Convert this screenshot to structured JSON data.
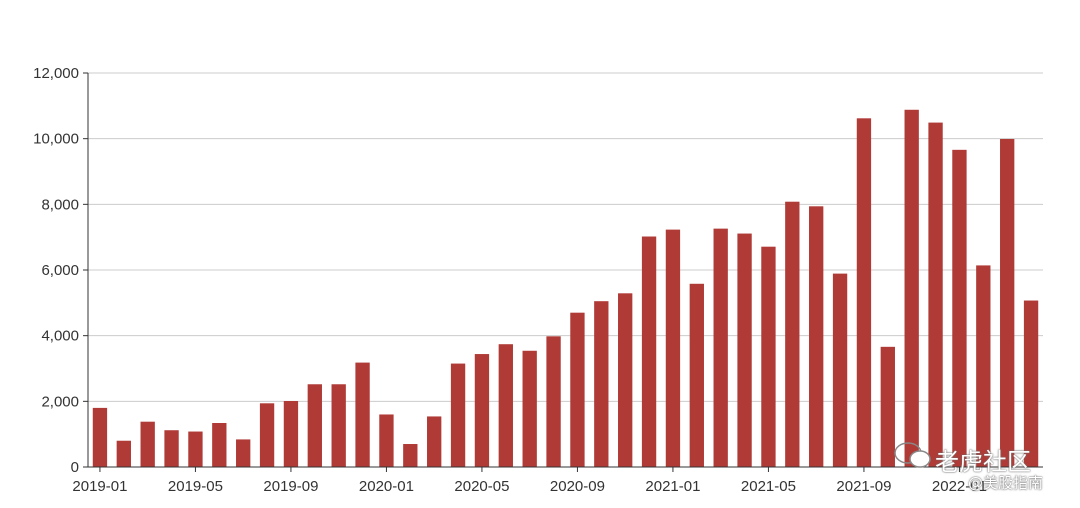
{
  "chart_data": {
    "type": "bar",
    "title": "",
    "xlabel": "",
    "ylabel": "",
    "ylim": [
      0,
      12000
    ],
    "yticks": [
      0,
      2000,
      4000,
      6000,
      8000,
      10000,
      12000
    ],
    "ytick_labels": [
      "0",
      "2,000",
      "4,000",
      "6,000",
      "8,000",
      "10,000",
      "12,000"
    ],
    "grid": true,
    "bar_color": "#b03a36",
    "categories": [
      "2019-01",
      "2019-02",
      "2019-03",
      "2019-04",
      "2019-05",
      "2019-06",
      "2019-07",
      "2019-08",
      "2019-09",
      "2019-10",
      "2019-11",
      "2019-12",
      "2020-01",
      "2020-02",
      "2020-03",
      "2020-04",
      "2020-05",
      "2020-06",
      "2020-07",
      "2020-08",
      "2020-09",
      "2020-10",
      "2020-11",
      "2020-12",
      "2021-01",
      "2021-02",
      "2021-03",
      "2021-04",
      "2021-05",
      "2021-06",
      "2021-07",
      "2021-08",
      "2021-09",
      "2021-10",
      "2021-11",
      "2021-12",
      "2022-01",
      "2022-02",
      "2022-03",
      "2022-04"
    ],
    "xtick_labels": [
      "2019-01",
      "2019-05",
      "2019-09",
      "2020-01",
      "2020-05",
      "2020-09",
      "2021-01",
      "2021-05",
      "2021-09",
      "2022-01"
    ],
    "values": [
      1800,
      800,
      1380,
      1120,
      1080,
      1340,
      840,
      1940,
      2010,
      2520,
      2520,
      3180,
      1600,
      700,
      1540,
      3150,
      3440,
      3740,
      3540,
      3980,
      4700,
      5050,
      5290,
      7020,
      7230,
      5580,
      7260,
      7110,
      6710,
      8080,
      7940,
      5890,
      10620,
      3660,
      10880,
      10490,
      9660,
      6140,
      9990,
      5070
    ]
  },
  "watermark": {
    "line1": "老虎社区",
    "line2": "@美股指南"
  }
}
